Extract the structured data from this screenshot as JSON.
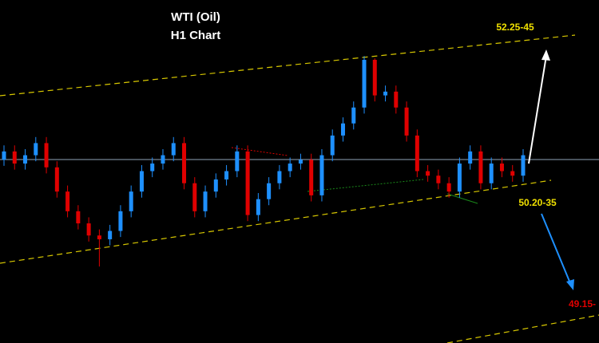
{
  "chart_data": {
    "type": "candlestick",
    "title": "WTI (Oil)",
    "subtitle": "H1 Chart",
    "annotations": [
      "52.25-45",
      "50.20-35",
      "49.15-"
    ],
    "up_color": "#1e90ff",
    "down_color": "#e00000",
    "ylim": [
      48.19,
      52.72
    ],
    "open": [
      50.61,
      50.72,
      50.56,
      50.67,
      50.83,
      50.51,
      50.19,
      49.93,
      49.77,
      49.61,
      49.56,
      49.67,
      49.93,
      50.19,
      50.46,
      50.56,
      50.67,
      50.83,
      50.3,
      49.93,
      50.19,
      50.35,
      50.46,
      50.72,
      49.88,
      50.09,
      50.3,
      50.46,
      50.56,
      50.61,
      50.14,
      50.67,
      50.93,
      51.09,
      51.3,
      51.93,
      51.46,
      51.51,
      51.3,
      50.93,
      50.46,
      50.4,
      50.3,
      50.19,
      50.56,
      50.72,
      50.3,
      50.56,
      50.46,
      50.4
    ],
    "high": [
      50.8,
      50.8,
      50.75,
      50.91,
      50.91,
      50.59,
      50.27,
      50.01,
      49.85,
      49.69,
      49.75,
      50.01,
      50.27,
      50.54,
      50.64,
      50.75,
      50.91,
      50.91,
      50.38,
      50.27,
      50.43,
      50.54,
      50.8,
      50.8,
      50.17,
      50.38,
      50.54,
      50.64,
      50.69,
      50.69,
      50.75,
      51.01,
      51.17,
      51.38,
      51.98,
      51.95,
      51.59,
      51.59,
      51.38,
      51.01,
      50.54,
      50.48,
      50.38,
      50.64,
      50.8,
      50.8,
      50.64,
      50.64,
      50.54,
      50.75
    ],
    "low": [
      50.53,
      50.48,
      50.48,
      50.59,
      50.43,
      50.11,
      49.85,
      49.69,
      49.53,
      49.2,
      49.48,
      49.59,
      49.85,
      50.11,
      50.38,
      50.48,
      50.59,
      50.22,
      49.85,
      49.85,
      50.11,
      50.27,
      50.38,
      49.8,
      49.8,
      50.01,
      50.22,
      50.38,
      50.48,
      50.06,
      50.06,
      50.59,
      50.85,
      51.01,
      51.22,
      51.38,
      51.38,
      51.22,
      50.85,
      50.38,
      50.32,
      50.22,
      50.11,
      50.11,
      50.48,
      50.22,
      50.22,
      50.38,
      50.32,
      50.32
    ],
    "close": [
      50.72,
      50.56,
      50.67,
      50.83,
      50.51,
      50.19,
      49.93,
      49.77,
      49.61,
      49.56,
      49.67,
      49.93,
      50.19,
      50.46,
      50.56,
      50.67,
      50.83,
      50.3,
      49.93,
      50.19,
      50.35,
      50.46,
      50.72,
      49.88,
      50.09,
      50.3,
      50.46,
      50.56,
      50.61,
      50.14,
      50.67,
      50.93,
      51.09,
      51.3,
      51.93,
      51.46,
      51.51,
      51.3,
      50.93,
      50.46,
      50.4,
      50.3,
      50.19,
      50.56,
      50.72,
      50.3,
      50.56,
      50.46,
      50.4,
      50.67
    ]
  }
}
